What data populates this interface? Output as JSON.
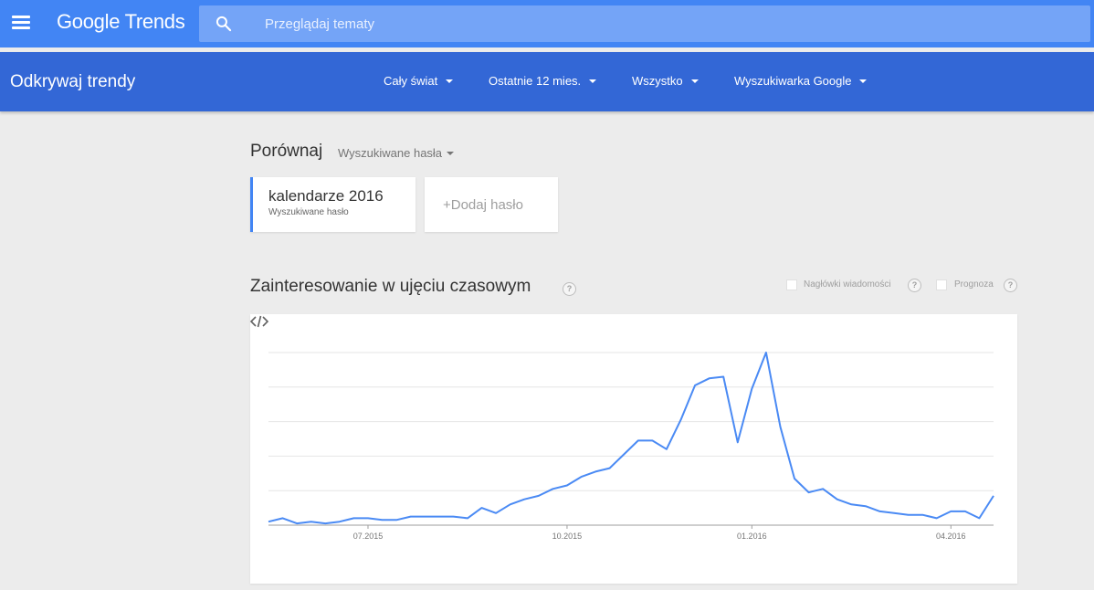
{
  "header": {
    "logo_google": "Google",
    "logo_trends": "Trends",
    "search_placeholder": "Przeglądaj tematy"
  },
  "subbar": {
    "title": "Odkrywaj trendy",
    "filters": [
      "Cały świat",
      "Ostatnie 12 mies.",
      "Wszystko",
      "Wyszukiwarka Google"
    ]
  },
  "compare": {
    "title": "Porównaj",
    "type_label": "Wyszukiwane hasła",
    "term_name": "kalendarze 2016",
    "term_type": "Wyszukiwane hasło",
    "add_label": "+Dodaj hasło"
  },
  "interest": {
    "title": "Zainteresowanie w ujęciu czasowym",
    "help": "?",
    "news_label": "Nagłówki wiadomości",
    "forecast_label": "Prognoza"
  },
  "colors": {
    "primary": "#4285f4",
    "subbar": "#3367d6",
    "line": "#4a8af4"
  },
  "chart_data": {
    "type": "line",
    "title": "",
    "xlabel": "",
    "ylabel": "",
    "x_tick_labels": [
      "07.2015",
      "10.2015",
      "01.2016",
      "04.2016"
    ],
    "x_tick_index": [
      7,
      21,
      34,
      48
    ],
    "ylim": [
      0,
      100
    ],
    "grid": true,
    "series": [
      {
        "values": [
          2,
          4,
          1,
          2,
          1,
          2,
          4,
          4,
          3,
          3,
          5,
          5,
          5,
          5,
          4,
          10,
          7,
          12,
          15,
          17,
          21,
          23,
          28,
          31,
          33,
          41,
          49,
          49,
          44,
          61,
          81,
          85,
          86,
          48,
          79,
          100,
          57,
          27,
          19,
          21,
          15,
          12,
          11,
          8,
          7,
          6,
          6,
          4,
          8,
          8,
          4,
          17
        ]
      }
    ]
  }
}
